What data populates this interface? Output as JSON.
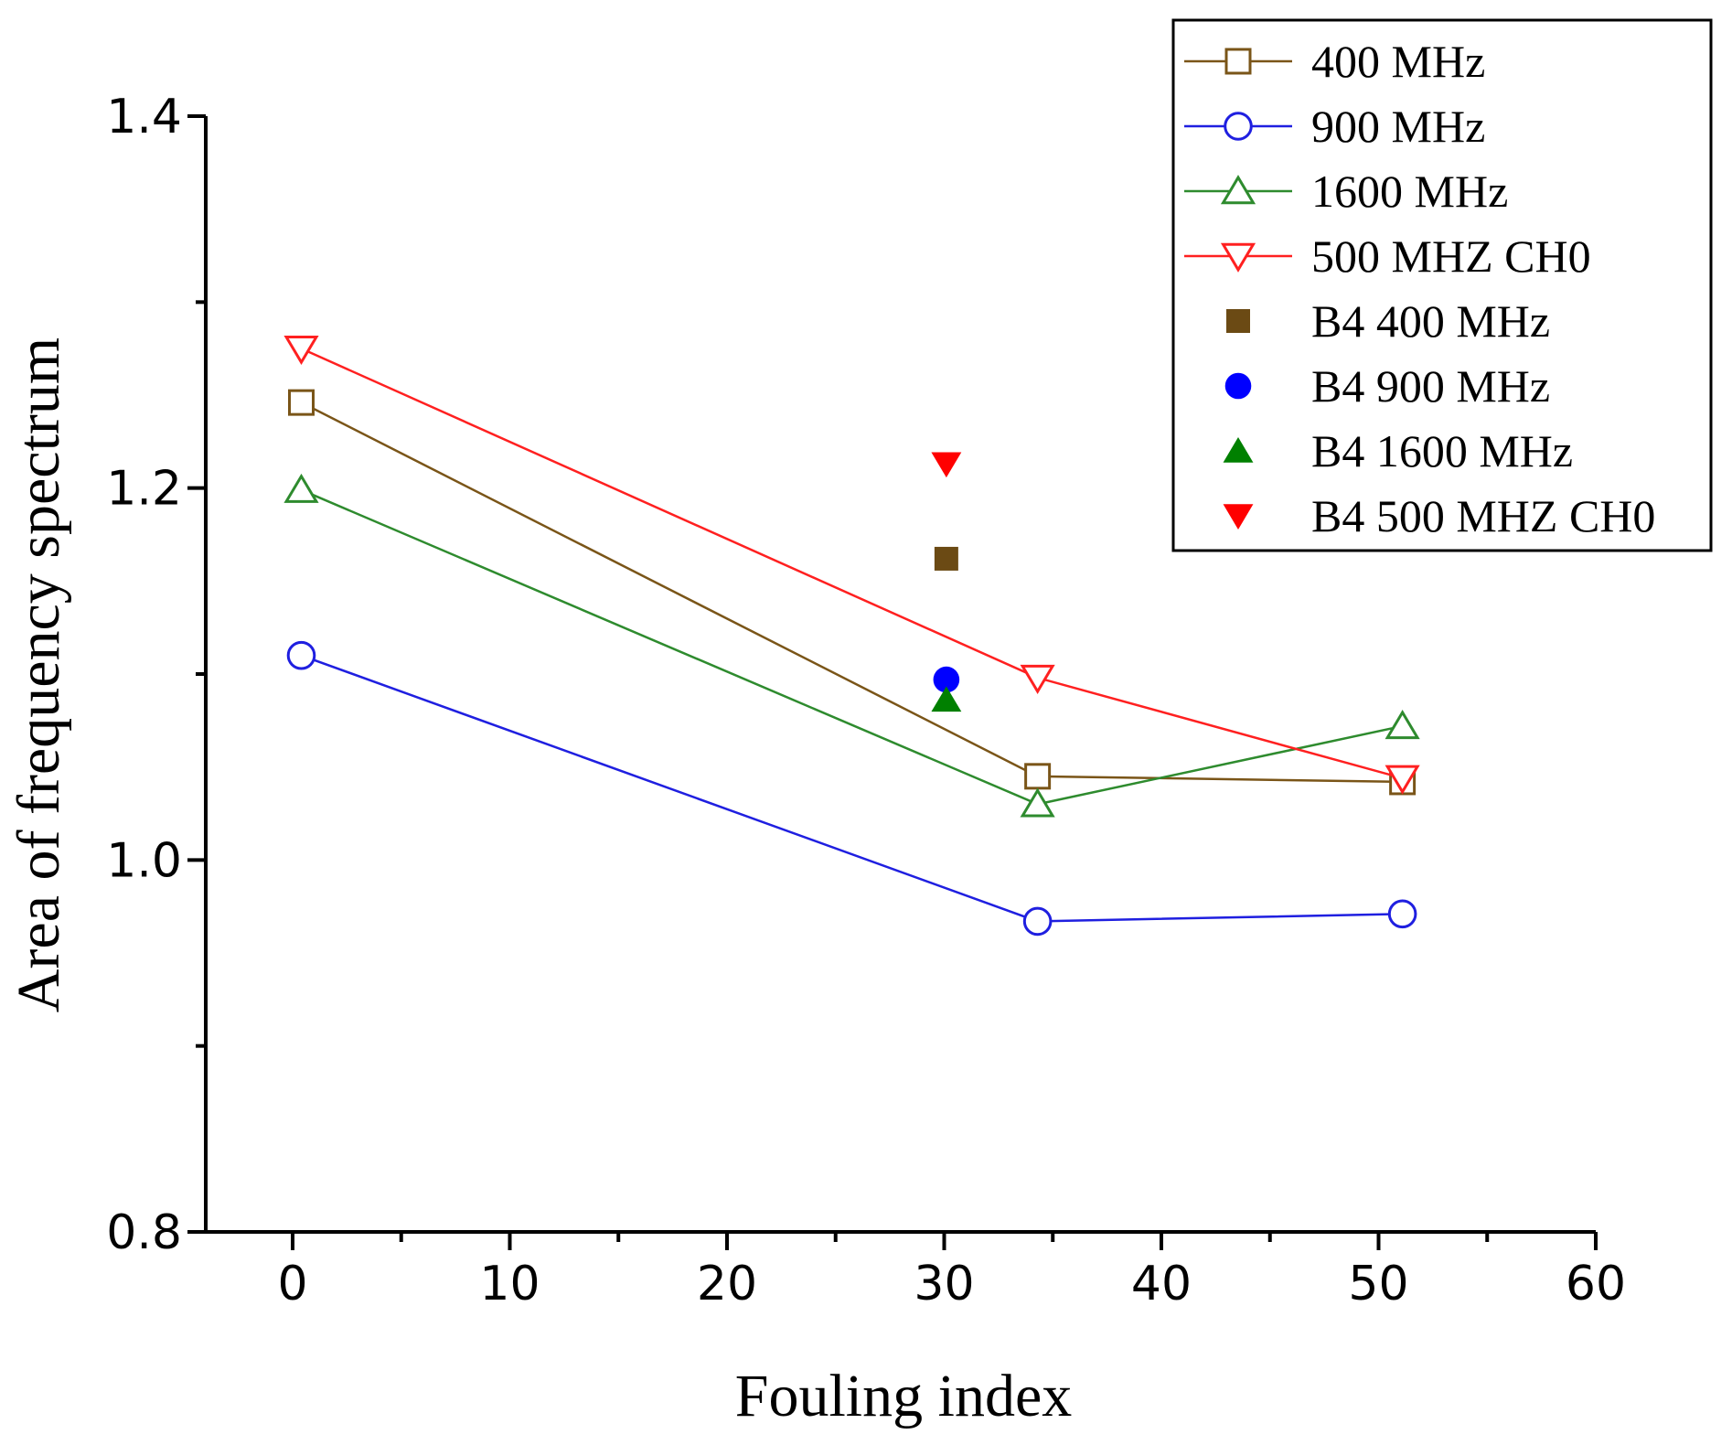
{
  "chart_data": {
    "type": "line",
    "title": "",
    "xlabel": "Fouling index",
    "ylabel": "Area of frequency spectrum",
    "xlim": [
      -4,
      60
    ],
    "ylim": [
      0.8,
      1.4
    ],
    "xticks": [
      0,
      10,
      20,
      30,
      40,
      50,
      60
    ],
    "xtick_labels": [
      "0",
      "10",
      "20",
      "30",
      "40",
      "50",
      "60"
    ],
    "yticks": [
      0.8,
      1.0,
      1.2,
      1.4
    ],
    "ytick_labels": [
      "0.8",
      "1.0",
      "1.2",
      "1.4"
    ],
    "grid": false,
    "legend_position": "top-right",
    "series": [
      {
        "name": "400 MHz",
        "color": "#7a5518",
        "marker": "square",
        "filled": false,
        "line": true,
        "x": [
          0.4,
          34.3,
          51.1
        ],
        "y": [
          1.246,
          1.045,
          1.042
        ]
      },
      {
        "name": "900 MHz",
        "color": "#1f1fe0",
        "marker": "circle",
        "filled": false,
        "line": true,
        "x": [
          0.4,
          34.3,
          51.1
        ],
        "y": [
          1.11,
          0.967,
          0.971
        ]
      },
      {
        "name": "1600 MHz",
        "color": "#2e8b2e",
        "marker": "triangle-up",
        "filled": false,
        "line": true,
        "x": [
          0.4,
          34.3,
          51.1
        ],
        "y": [
          1.199,
          1.03,
          1.072
        ]
      },
      {
        "name": "500 MHZ CH0",
        "color": "#ff2020",
        "marker": "triangle-down",
        "filled": false,
        "line": true,
        "x": [
          0.4,
          34.3,
          51.1
        ],
        "y": [
          1.275,
          1.098,
          1.044
        ]
      },
      {
        "name": "B4 400 MHz",
        "color": "#6b4a14",
        "marker": "square",
        "filled": true,
        "line": false,
        "x": [
          30.1
        ],
        "y": [
          1.162
        ]
      },
      {
        "name": "B4 900 MHz",
        "color": "#0000ff",
        "marker": "circle",
        "filled": true,
        "line": false,
        "x": [
          30.1
        ],
        "y": [
          1.097
        ]
      },
      {
        "name": "B4 1600 MHz",
        "color": "#008000",
        "marker": "triangle-up",
        "filled": true,
        "line": false,
        "x": [
          30.1
        ],
        "y": [
          1.086
        ]
      },
      {
        "name": "B4 500 MHZ CH0",
        "color": "#ff0000",
        "marker": "triangle-down",
        "filled": true,
        "line": false,
        "x": [
          30.1
        ],
        "y": [
          1.213
        ]
      }
    ]
  }
}
